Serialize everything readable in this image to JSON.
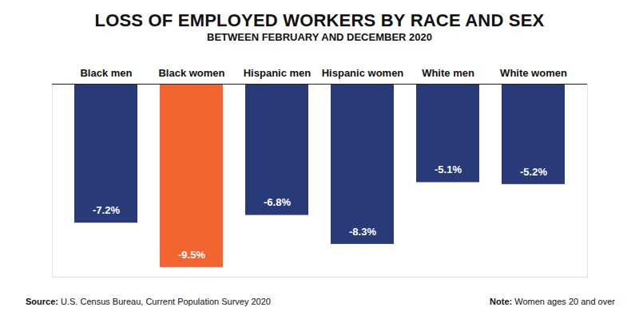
{
  "chart_data": {
    "type": "bar",
    "title": "LOSS OF EMPLOYED WORKERS BY RACE AND SEX",
    "subtitle": "BETWEEN FEBRUARY AND DECEMBER 2020",
    "categories": [
      "Black men",
      "Black women",
      "Hispanic men",
      "Hispanic women",
      "White men",
      "White women"
    ],
    "values": [
      -7.2,
      -9.5,
      -6.8,
      -8.3,
      -5.1,
      -5.2
    ],
    "value_labels": [
      "-7.2%",
      "-9.5%",
      "-6.8%",
      "-8.3%",
      "-5.1%",
      "-5.2%"
    ],
    "colors": [
      "#283a78",
      "#f26430",
      "#283a78",
      "#283a78",
      "#283a78",
      "#283a78"
    ],
    "ylim": [
      -10,
      0
    ],
    "data_labels": true,
    "tick_labels": "x",
    "grid": false,
    "source": "Source: U.S. Census Bureau, Current Population Survey 2020",
    "note": "Note: Women ages 20 and over"
  }
}
